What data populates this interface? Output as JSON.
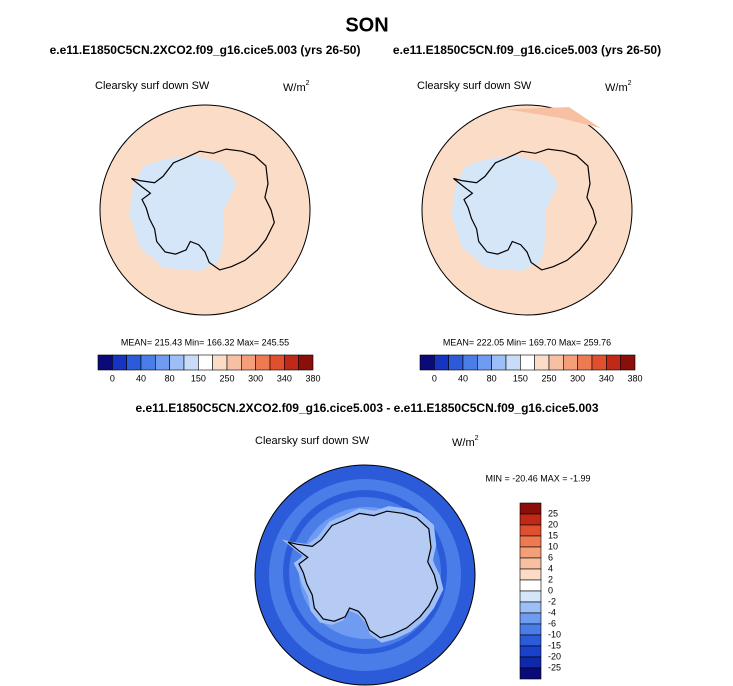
{
  "title": "SON",
  "panels": [
    {
      "title": "e.e11.E1850C5CN.2XCO2.f09_g16.cice5.003 (yrs 26-50)",
      "variable": "Clearsky surf down SW",
      "units": "W/m",
      "units_sup": "2",
      "stats": "MEAN= 215.43  Min= 166.32  Max= 245.55",
      "colorbar": {
        "labels": [
          0,
          40,
          80,
          150,
          250,
          300,
          340,
          380
        ],
        "colors": [
          "#0a0a78",
          "#1733c2",
          "#2b5bd8",
          "#4a7de8",
          "#6f9cf1",
          "#9dbef6",
          "#c8dcf9",
          "#ffffff",
          "#fbdcc7",
          "#f8c0a2",
          "#f49f7a",
          "#ee7a52",
          "#e0502e",
          "#c02817",
          "#8a0f0a"
        ]
      }
    },
    {
      "title": "e.e11.E1850C5CN.f09_g16.cice5.003 (yrs 26-50)",
      "variable": "Clearsky surf down SW",
      "units": "W/m",
      "units_sup": "2",
      "stats": "MEAN= 222.05  Min= 169.70  Max= 259.76",
      "colorbar": {
        "labels": [
          0,
          40,
          80,
          150,
          250,
          300,
          340,
          380
        ],
        "colors": [
          "#0a0a78",
          "#1733c2",
          "#2b5bd8",
          "#4a7de8",
          "#6f9cf1",
          "#9dbef6",
          "#c8dcf9",
          "#ffffff",
          "#fbdcc7",
          "#f8c0a2",
          "#f49f7a",
          "#ee7a52",
          "#e0502e",
          "#c02817",
          "#8a0f0a"
        ]
      }
    }
  ],
  "difference": {
    "title": "e.e11.E1850C5CN.2XCO2.f09_g16.cice5.003 - e.e11.E1850C5CN.f09_g16.cice5.003",
    "variable": "Clearsky surf down SW",
    "units": "W/m",
    "units_sup": "2",
    "stats": "MIN = -20.46 MAX = -1.99",
    "colorbar": {
      "labels": [
        25,
        20,
        15,
        10,
        6,
        4,
        2,
        0,
        -2,
        -4,
        -6,
        -10,
        -15,
        -20,
        -25
      ],
      "colors": [
        "#8a0f0a",
        "#c02817",
        "#e0502e",
        "#ee7a52",
        "#f49f7a",
        "#f8c0a2",
        "#fbdcc7",
        "#ffffff",
        "#d6e6f9",
        "#9dbef6",
        "#6f9cf1",
        "#4a7de8",
        "#2b5bd8",
        "#1a40cc",
        "#1028aa",
        "#0a0a78"
      ]
    }
  }
}
